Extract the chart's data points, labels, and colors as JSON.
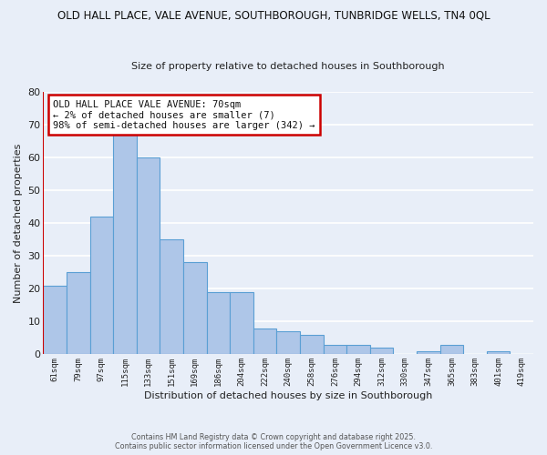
{
  "title": "OLD HALL PLACE, VALE AVENUE, SOUTHBOROUGH, TUNBRIDGE WELLS, TN4 0QL",
  "subtitle": "Size of property relative to detached houses in Southborough",
  "xlabel": "Distribution of detached houses by size in Southborough",
  "ylabel": "Number of detached properties",
  "bar_color": "#aec6e8",
  "bar_edge_color": "#5a9fd4",
  "background_color": "#e8eef8",
  "grid_color": "#ffffff",
  "bin_labels": [
    "61sqm",
    "79sqm",
    "97sqm",
    "115sqm",
    "133sqm",
    "151sqm",
    "169sqm",
    "186sqm",
    "204sqm",
    "222sqm",
    "240sqm",
    "258sqm",
    "276sqm",
    "294sqm",
    "312sqm",
    "330sqm",
    "347sqm",
    "365sqm",
    "383sqm",
    "401sqm",
    "419sqm"
  ],
  "bar_values": [
    21,
    25,
    42,
    67,
    60,
    35,
    28,
    19,
    19,
    8,
    7,
    6,
    3,
    3,
    2,
    0,
    1,
    3,
    0,
    1,
    0
  ],
  "ylim": [
    0,
    80
  ],
  "yticks": [
    0,
    10,
    20,
    30,
    40,
    50,
    60,
    70,
    80
  ],
  "marker_color": "#cc0000",
  "annotation_text": "OLD HALL PLACE VALE AVENUE: 70sqm\n← 2% of detached houses are smaller (7)\n98% of semi-detached houses are larger (342) →",
  "annotation_box_color": "#ffffff",
  "annotation_box_edge": "#cc0000",
  "footer1": "Contains HM Land Registry data © Crown copyright and database right 2025.",
  "footer2": "Contains public sector information licensed under the Open Government Licence v3.0."
}
